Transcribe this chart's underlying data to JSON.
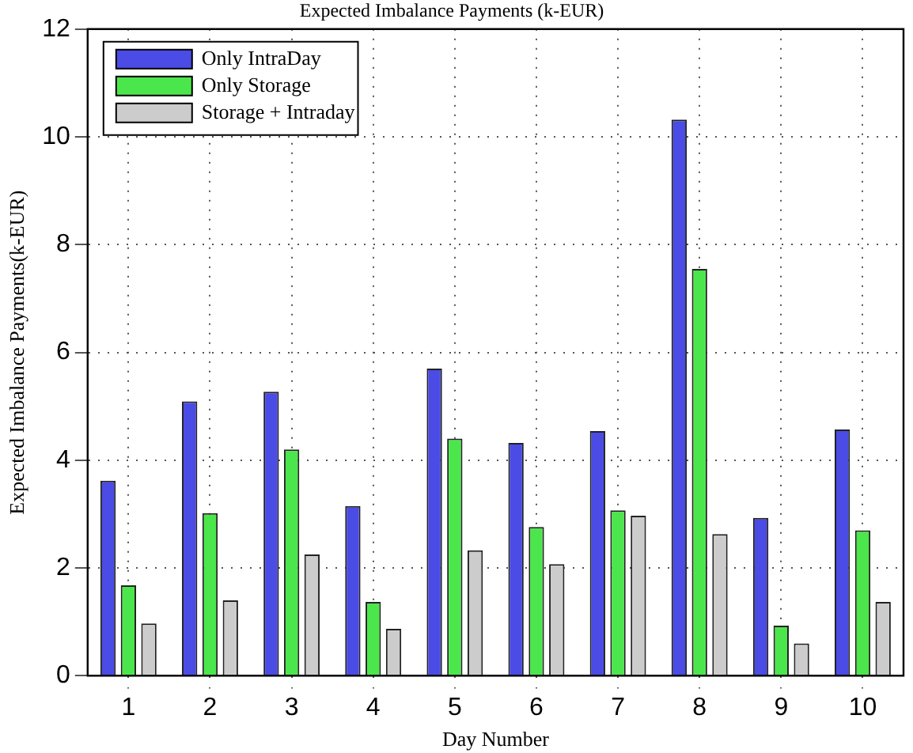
{
  "chart_data": {
    "type": "bar",
    "title": "Expected Imbalance Payments (k-EUR)",
    "xlabel": "Day Number",
    "ylabel": "Expected Imbalance Payments(k-EUR)",
    "categories": [
      "1",
      "2",
      "3",
      "4",
      "5",
      "6",
      "7",
      "8",
      "9",
      "10"
    ],
    "series": [
      {
        "name": "Only IntraDay",
        "color": "#4b4be6",
        "values": [
          3.62,
          5.09,
          5.27,
          3.15,
          5.7,
          4.32,
          4.54,
          10.32,
          2.93,
          4.57
        ]
      },
      {
        "name": "Only Storage",
        "color": "#4be64b",
        "values": [
          1.68,
          3.02,
          4.2,
          1.37,
          4.4,
          2.76,
          3.07,
          7.55,
          0.93,
          2.7
        ]
      },
      {
        "name": "Storage + Intraday",
        "color": "#cccccc",
        "values": [
          0.97,
          1.4,
          2.25,
          0.87,
          2.33,
          2.07,
          2.97,
          2.63,
          0.6,
          1.37
        ]
      }
    ],
    "ylim": [
      0,
      12
    ],
    "yticks": [
      0,
      2,
      4,
      6,
      8,
      10,
      12
    ],
    "grid": true,
    "legend": "top left"
  }
}
